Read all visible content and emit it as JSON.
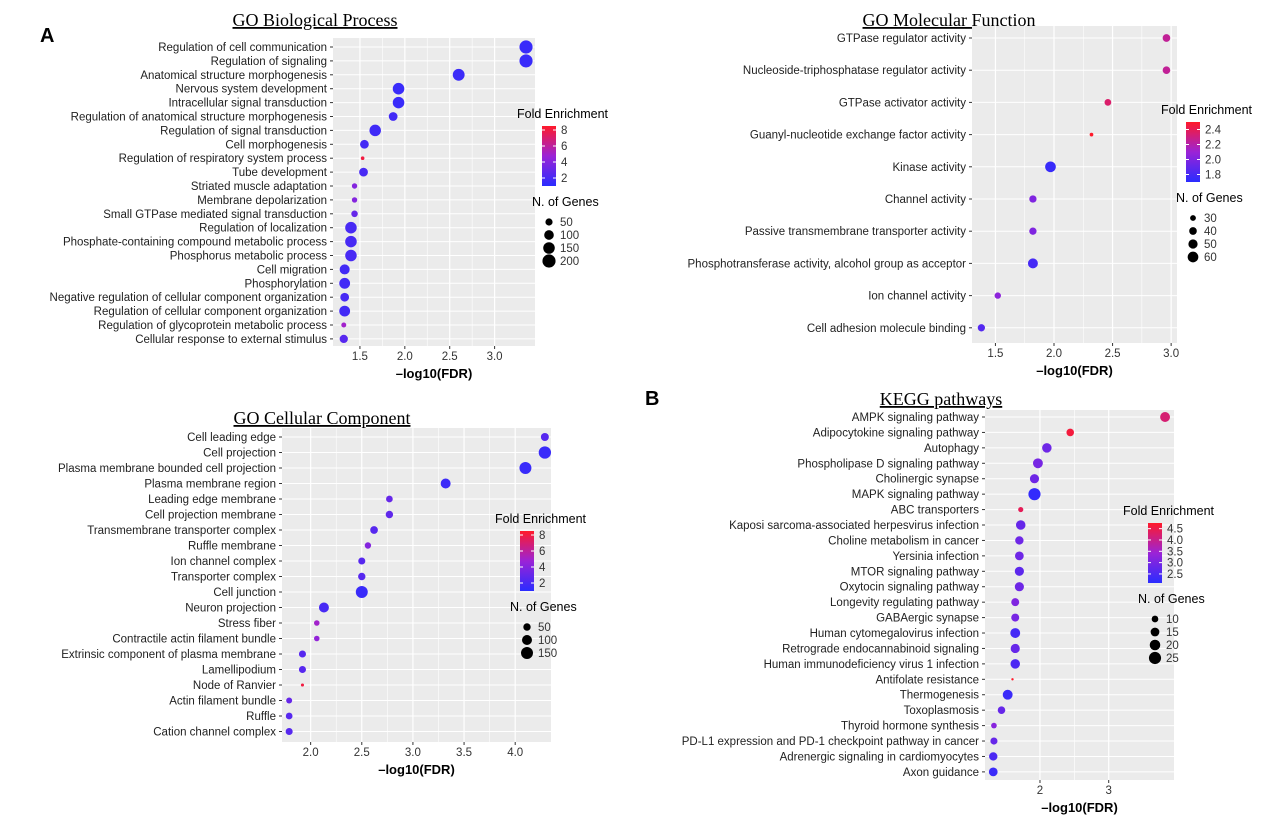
{
  "panel_labels": {
    "a": "A",
    "b": "B"
  },
  "legend_titles": {
    "fold": "Fold Enrichment",
    "genes": "N. of Genes"
  },
  "colors": {
    "low": "#2a2cff",
    "mid": "#9b23d6",
    "high": "#ff1a2a",
    "panel_bg": "#ebebeb",
    "grid": "#ffffff"
  },
  "chart_data": [
    {
      "id": "bp",
      "type": "scatter",
      "title": "GO Biological Process",
      "xlabel": "–log10(FDR)",
      "xlim": [
        1.2,
        3.45
      ],
      "xticks": [
        1.5,
        2.0,
        2.5,
        3.0
      ],
      "xtick_labels": [
        "1.5",
        "2.0",
        "2.5",
        "3.0"
      ],
      "color_range": [
        1,
        8.5
      ],
      "color_ticks": [
        2,
        4,
        6,
        8
      ],
      "color_tick_labels": [
        "2",
        "4",
        "6",
        "8"
      ],
      "size_range": [
        2,
        230
      ],
      "size_ticks": [
        50,
        100,
        150,
        200
      ],
      "size_tick_labels": [
        "50",
        "100",
        "150",
        "200"
      ],
      "categories": [
        "Regulation of cell communication",
        "Regulation of signaling",
        "Anatomical structure morphogenesis",
        "Nervous system development",
        "Intracellular signal transduction",
        "Regulation of anatomical structure morphogenesis",
        "Regulation of signal transduction",
        "Cell morphogenesis",
        "Regulation of respiratory system process",
        "Tube development",
        "Striated muscle adaptation",
        "Membrane depolarization",
        "Small GTPase mediated signal transduction",
        "Regulation of localization",
        "Phosphate-containing compound metabolic process",
        "Phosphorus metabolic process",
        "Cell migration",
        "Phosphorylation",
        "Negative regulation of cellular component organization",
        "Regulation of cellular component organization",
        "Regulation of glycoprotein metabolic process",
        "Cellular response to external stimulus"
      ],
      "x": [
        3.35,
        3.35,
        2.6,
        1.93,
        1.93,
        1.87,
        1.67,
        1.55,
        1.53,
        1.54,
        1.44,
        1.44,
        1.44,
        1.4,
        1.4,
        1.4,
        1.33,
        1.33,
        1.33,
        1.33,
        1.32,
        1.32
      ],
      "fold": [
        1.5,
        1.5,
        1.6,
        1.5,
        1.5,
        1.8,
        1.7,
        1.9,
        8.0,
        2.0,
        4.0,
        4.0,
        3.0,
        2.0,
        2.0,
        2.0,
        1.8,
        1.8,
        2.0,
        1.8,
        5.0,
        2.5
      ],
      "genes": [
        200,
        200,
        160,
        150,
        150,
        80,
        150,
        80,
        8,
        80,
        25,
        25,
        40,
        150,
        150,
        150,
        110,
        130,
        80,
        130,
        20,
        70
      ]
    },
    {
      "id": "mf",
      "type": "scatter",
      "title": "GO Molecular Function",
      "xlabel": "–log10(FDR)",
      "xlim": [
        1.3,
        3.05
      ],
      "xticks": [
        1.5,
        2.0,
        2.5,
        3.0
      ],
      "xtick_labels": [
        "1.5",
        "2.0",
        "2.5",
        "3.0"
      ],
      "color_range": [
        1.7,
        2.5
      ],
      "color_ticks": [
        1.8,
        2.0,
        2.2,
        2.4
      ],
      "color_tick_labels": [
        "1.8",
        "2.0",
        "2.2",
        "2.4"
      ],
      "size_range": [
        15,
        70
      ],
      "size_ticks": [
        30,
        40,
        50,
        60
      ],
      "size_tick_labels": [
        "30",
        "40",
        "50",
        "60"
      ],
      "categories": [
        "GTPase regulator activity",
        "Nucleoside-triphosphatase regulator activity",
        "GTPase activator activity",
        "Guanyl-nucleotide exchange factor activity",
        "Kinase activity",
        "Channel activity",
        "Passive transmembrane transporter activity",
        "Phosphotransferase activity, alcohol group as acceptor",
        "Ion channel activity",
        "Cell adhesion molecule binding"
      ],
      "x": [
        2.96,
        2.96,
        2.46,
        2.32,
        1.97,
        1.82,
        1.82,
        1.82,
        1.52,
        1.38
      ],
      "fold": [
        2.25,
        2.25,
        2.35,
        2.5,
        1.75,
        2.0,
        2.0,
        1.8,
        2.05,
        1.85
      ],
      "genes": [
        40,
        40,
        35,
        20,
        60,
        38,
        38,
        55,
        33,
        38
      ]
    },
    {
      "id": "cc",
      "type": "scatter",
      "title": "GO Cellular Component",
      "xlabel": "–log10(FDR)",
      "xlim": [
        1.72,
        4.35
      ],
      "xticks": [
        2.0,
        2.5,
        3.0,
        3.5,
        4.0
      ],
      "xtick_labels": [
        "2.0",
        "2.5",
        "3.0",
        "3.5",
        "4.0"
      ],
      "color_range": [
        1,
        8.5
      ],
      "color_ticks": [
        2,
        4,
        6,
        8
      ],
      "color_tick_labels": [
        "2",
        "4",
        "6",
        "8"
      ],
      "size_range": [
        2,
        180
      ],
      "size_ticks": [
        50,
        100,
        150
      ],
      "size_tick_labels": [
        "50",
        "100",
        "150"
      ],
      "categories": [
        "Cell leading edge",
        "Cell projection",
        "Plasma membrane bounded cell projection",
        "Plasma membrane region",
        "Leading edge membrane",
        "Cell projection membrane",
        "Transmembrane transporter complex",
        "Ruffle membrane",
        "Ion channel complex",
        "Transporter complex",
        "Cell junction",
        "Neuron projection",
        "Stress fiber",
        "Contractile actin filament bundle",
        "Extrinsic component of plasma membrane",
        "Lamellipodium",
        "Node of Ranvier",
        "Actin filament bundle",
        "Ruffle",
        "Cation channel complex"
      ],
      "x": [
        4.29,
        4.29,
        4.1,
        3.32,
        2.77,
        2.77,
        2.62,
        2.56,
        2.5,
        2.5,
        2.5,
        2.13,
        2.06,
        2.06,
        1.92,
        1.92,
        1.92,
        1.79,
        1.79,
        1.79
      ],
      "fold": [
        2.5,
        1.5,
        1.5,
        1.6,
        3.0,
        2.8,
        2.5,
        4.0,
        2.5,
        2.5,
        1.5,
        2.0,
        5.0,
        4.5,
        2.5,
        2.5,
        8.0,
        3.0,
        2.5,
        2.5
      ],
      "genes": [
        60,
        160,
        150,
        100,
        40,
        50,
        55,
        35,
        45,
        50,
        150,
        100,
        25,
        25,
        45,
        45,
        5,
        30,
        40,
        45
      ]
    },
    {
      "id": "kegg",
      "type": "scatter",
      "title": "KEGG pathways",
      "xlabel": "–log10(FDR)",
      "xlim": [
        1.2,
        3.95
      ],
      "xticks": [
        2,
        3
      ],
      "xtick_labels": [
        "2",
        "3"
      ],
      "color_range": [
        2.1,
        4.75
      ],
      "color_ticks": [
        2.5,
        3.0,
        3.5,
        4.0,
        4.5
      ],
      "color_tick_labels": [
        "2.5",
        "3.0",
        "3.5",
        "4.0",
        "4.5"
      ],
      "size_range": [
        3,
        28
      ],
      "size_ticks": [
        10,
        15,
        20,
        25
      ],
      "size_tick_labels": [
        "10",
        "15",
        "20",
        "25"
      ],
      "categories": [
        "AMPK signaling pathway",
        "Adipocytokine signaling pathway",
        "Autophagy",
        "Phospholipase D signaling pathway",
        "Cholinergic synapse",
        "MAPK signaling pathway",
        "ABC transporters",
        "Kaposi sarcoma-associated herpesvirus infection",
        "Choline metabolism in cancer",
        "Yersinia infection",
        "MTOR signaling pathway",
        "Oxytocin signaling pathway",
        "Longevity regulating pathway",
        "GABAergic synapse",
        "Human cytomegalovirus infection",
        "Retrograde endocannabinoid signaling",
        "Human immunodeficiency virus 1 infection",
        "Antifolate resistance",
        "Thermogenesis",
        "Toxoplasmosis",
        "Thyroid hormone synthesis",
        "PD-L1 expression and PD-1 checkpoint pathway in cancer",
        "Adrenergic signaling in cardiomyocytes",
        "Axon guidance"
      ],
      "x": [
        3.82,
        2.44,
        2.1,
        1.97,
        1.92,
        1.92,
        1.72,
        1.72,
        1.7,
        1.7,
        1.7,
        1.7,
        1.64,
        1.64,
        1.64,
        1.64,
        1.64,
        1.6,
        1.53,
        1.44,
        1.33,
        1.33,
        1.32,
        1.32
      ],
      "fold": [
        4.2,
        4.6,
        2.9,
        3.0,
        2.9,
        2.2,
        4.4,
        2.8,
        2.9,
        2.9,
        2.7,
        2.9,
        3.1,
        3.0,
        2.4,
        2.8,
        2.5,
        4.8,
        2.3,
        2.8,
        3.2,
        2.8,
        2.5,
        2.3
      ],
      "genes": [
        18,
        12,
        17,
        18,
        16,
        25,
        7,
        17,
        14,
        15,
        16,
        16,
        13,
        13,
        18,
        16,
        17,
        3,
        18,
        12,
        8,
        11,
        14,
        15
      ]
    }
  ]
}
